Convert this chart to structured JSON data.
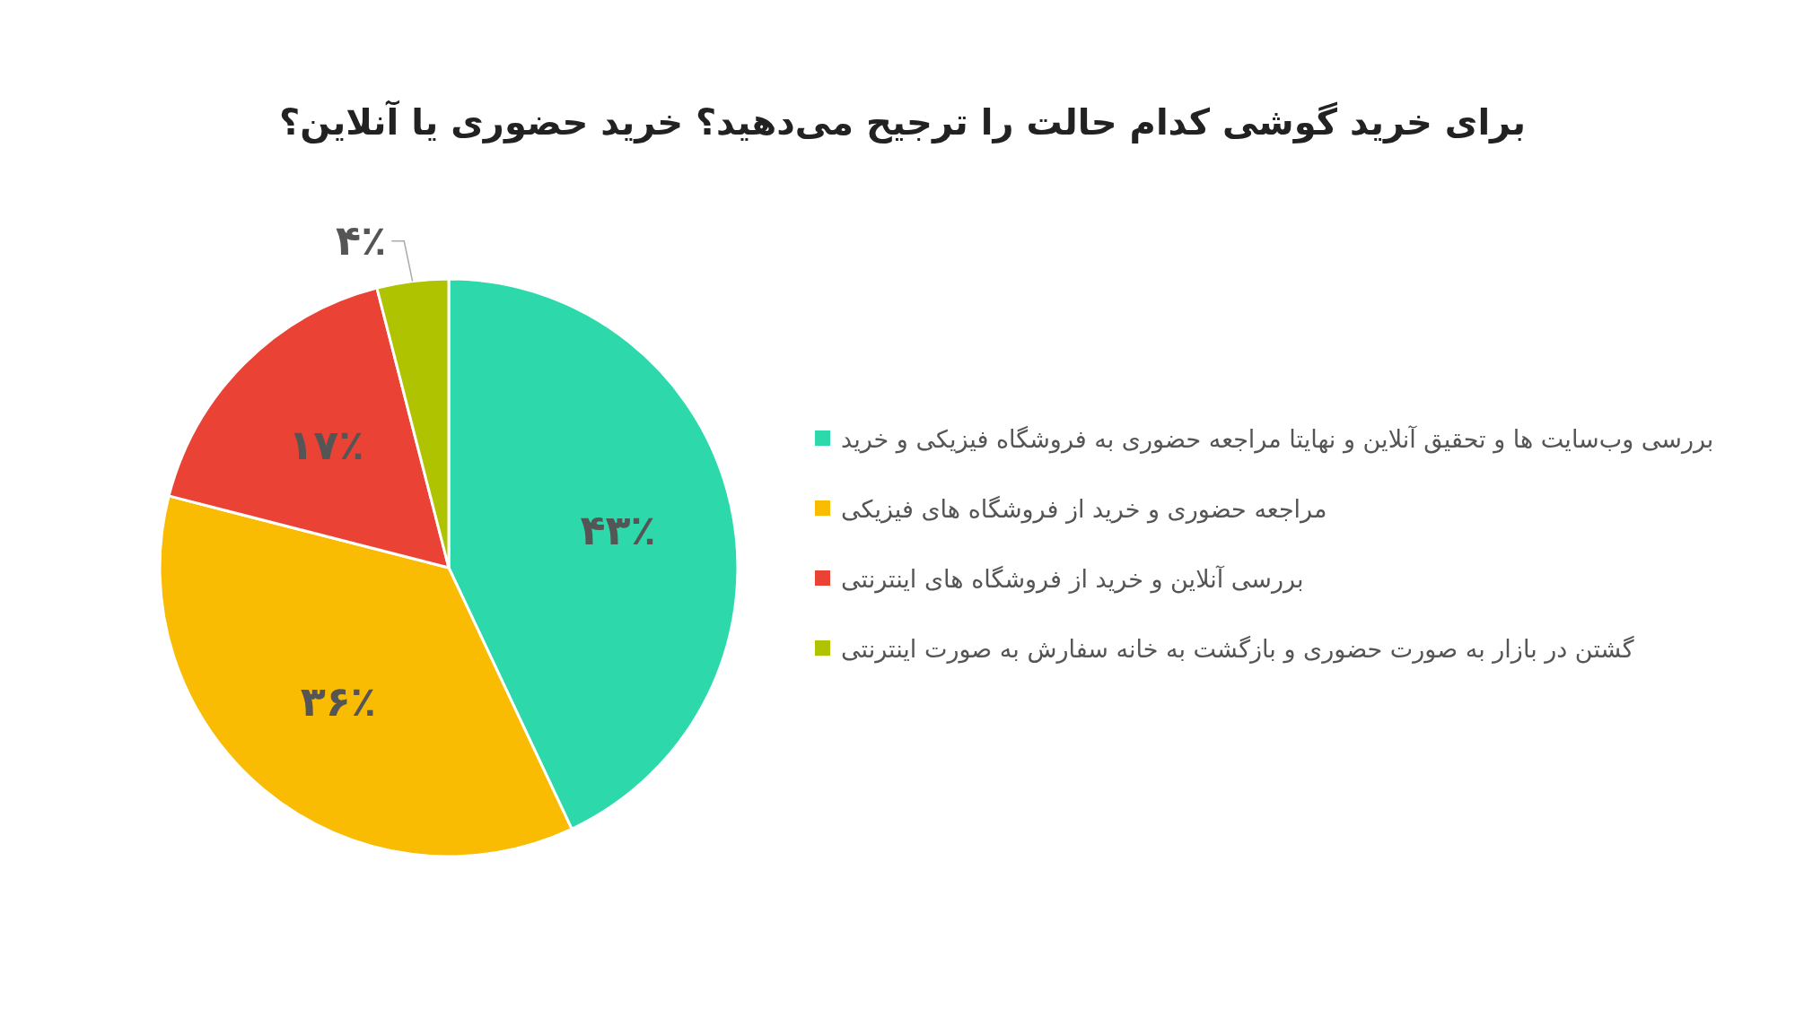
{
  "chart_data": {
    "type": "pie",
    "title": "برای خرید گوشی کدام حالت را ترجیح می‌دهید؟ خرید حضوری یا آنلاین؟",
    "categories": [
      "بررسی وب‌سایت ها و تحقیق آنلاین و نهایتا مراجعه حضوری به فروشگاه فیزیکی و خرید",
      "مراجعه حضوری و خرید از فروشگاه های فیزیکی",
      "بررسی آنلاین و خرید از فروشگاه های اینترنتی",
      "گشتن در بازار به صورت حضوری و بازگشت به خانه سفارش به صورت اینترنتی"
    ],
    "values": [
      43,
      36,
      17,
      4
    ],
    "value_labels": [
      "۴۳٪",
      "۳۶٪",
      "۱۷٪",
      "۴٪"
    ],
    "colors": [
      "#2dd9aa",
      "#f9bc03",
      "#ea4335",
      "#afc300"
    ],
    "legend": "right"
  }
}
